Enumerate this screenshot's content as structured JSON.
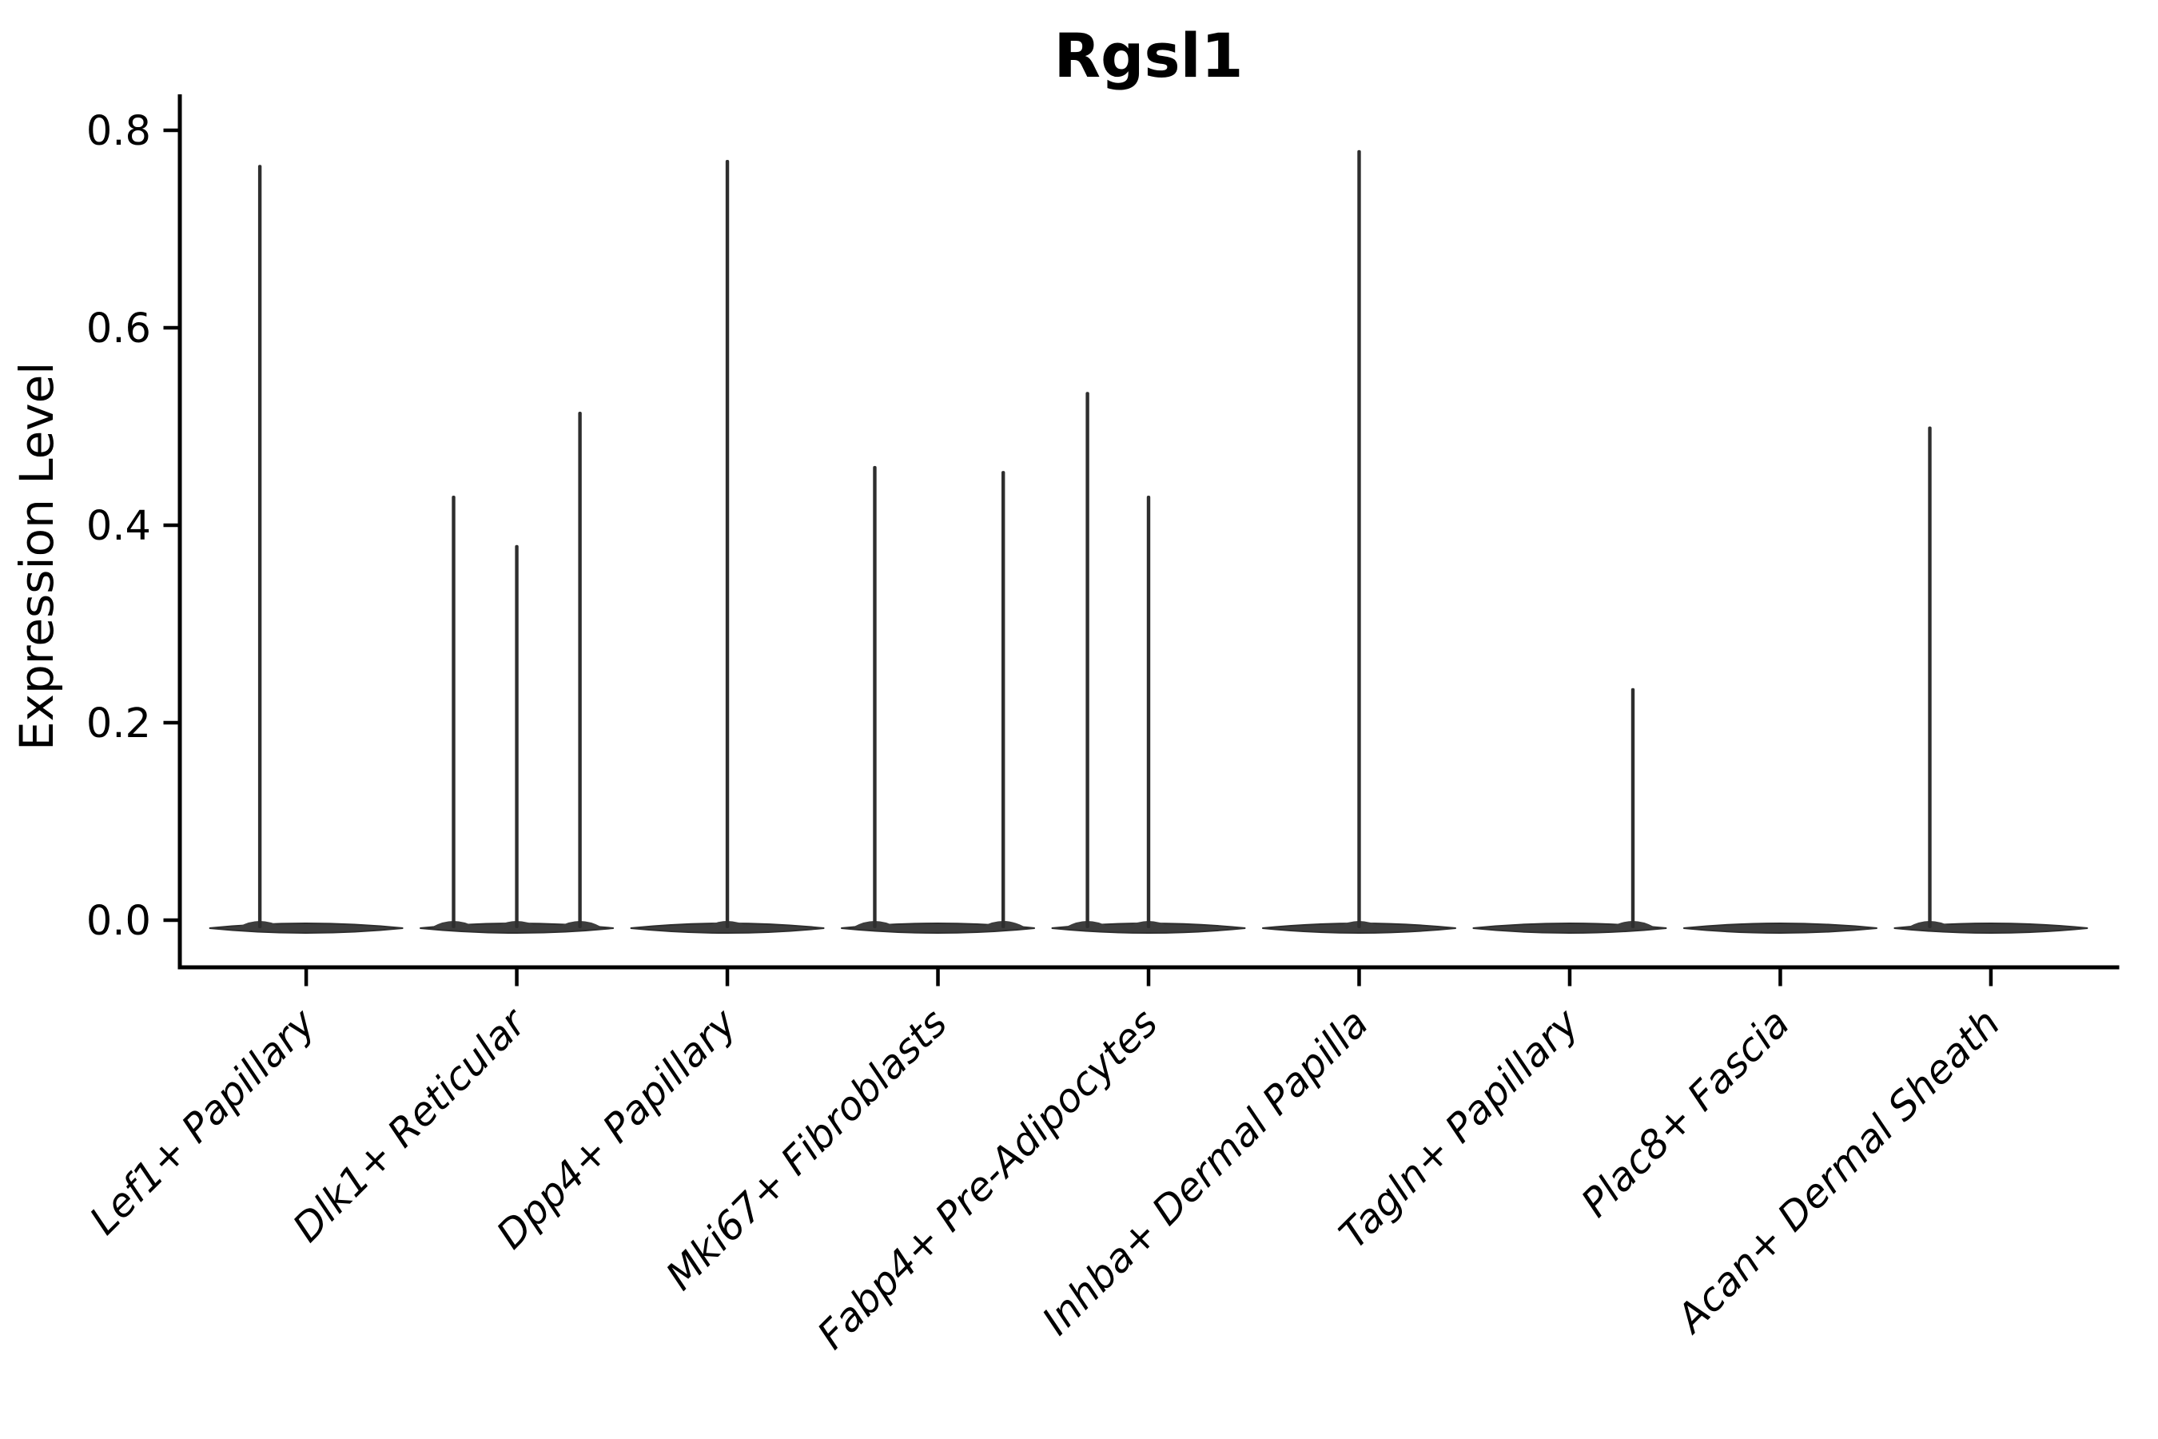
{
  "chart_data": {
    "type": "violin",
    "title": "Rgsl1",
    "ylabel": "Expression Level",
    "xlabel": "",
    "ylim": [
      0,
      0.8
    ],
    "ytick_labels": [
      "0.0",
      "0.2",
      "0.4",
      "0.6",
      "0.8"
    ],
    "ytick_values": [
      0.0,
      0.2,
      0.4,
      0.6,
      0.8
    ],
    "grid": false,
    "legend": false,
    "background_color": "#ffffff",
    "violin_fill_color": "#3d3d3d",
    "violin_edge_color": "#2e2e2e",
    "axis_color": "#000000",
    "description": "Violin plot of Rgsl1 expression; each cluster is a flat violin at 0 with thin spikes marking the maximum expression tails of rare expressing cells.",
    "categories": [
      {
        "label": "Lef1+ Papillary",
        "spikes": [
          {
            "pos": -0.22,
            "value": 0.765
          }
        ]
      },
      {
        "label": "Dlk1+ Reticular",
        "spikes": [
          {
            "pos": -0.3,
            "value": 0.43
          },
          {
            "pos": 0.0,
            "value": 0.38
          },
          {
            "pos": 0.3,
            "value": 0.515
          }
        ]
      },
      {
        "label": "Dpp4+ Papillary",
        "spikes": [
          {
            "pos": 0.0,
            "value": 0.77
          }
        ]
      },
      {
        "label": "Mki67+ Fibroblasts",
        "spikes": [
          {
            "pos": -0.3,
            "value": 0.46
          },
          {
            "pos": 0.31,
            "value": 0.455
          }
        ]
      },
      {
        "label": "Fabp4+ Pre-Adipocytes",
        "spikes": [
          {
            "pos": -0.29,
            "value": 0.535
          },
          {
            "pos": 0.0,
            "value": 0.43
          }
        ]
      },
      {
        "label": "Inhba+ Dermal Papilla",
        "spikes": [
          {
            "pos": 0.0,
            "value": 0.78
          }
        ]
      },
      {
        "label": "Tagln+ Papillary",
        "spikes": [
          {
            "pos": 0.3,
            "value": 0.235
          }
        ]
      },
      {
        "label": "Plac8+ Fascia",
        "spikes": []
      },
      {
        "label": "Acan+ Dermal Sheath",
        "spikes": [
          {
            "pos": -0.29,
            "value": 0.5
          }
        ]
      }
    ]
  }
}
